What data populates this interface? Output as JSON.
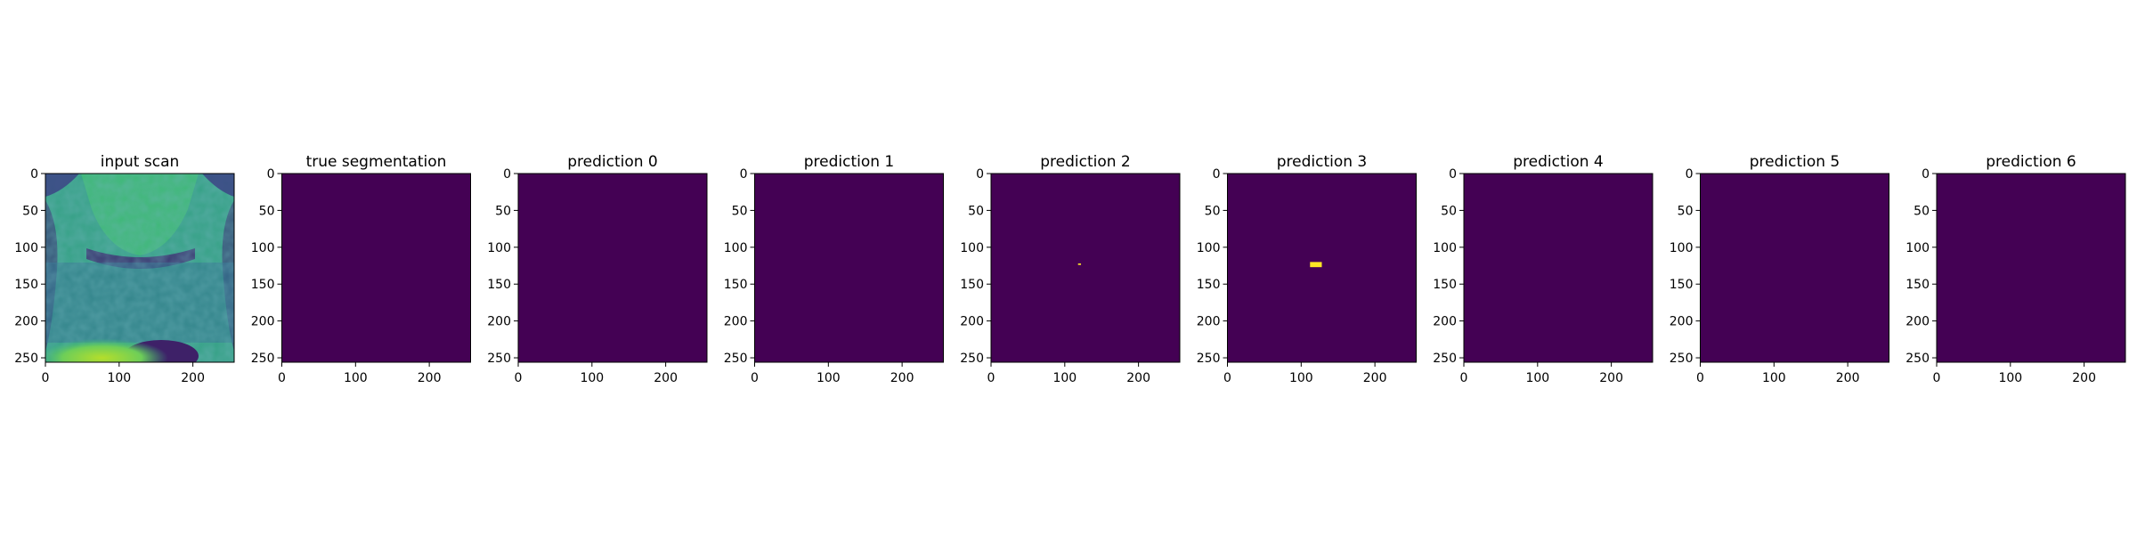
{
  "chart_data": [
    {
      "type": "heatmap",
      "title": "input scan",
      "xlim": [
        0,
        256
      ],
      "ylim": [
        256,
        0
      ],
      "x_ticks": [
        "0",
        "100",
        "200"
      ],
      "y_ticks": [
        "0",
        "50",
        "100",
        "150",
        "200",
        "250"
      ],
      "content": "MRI scan image (viridis colormap)",
      "colormap": "viridis"
    },
    {
      "type": "heatmap",
      "title": "true segmentation",
      "xlim": [
        0,
        256
      ],
      "ylim": [
        256,
        0
      ],
      "x_ticks": [
        "0",
        "100",
        "200"
      ],
      "y_ticks": [
        "0",
        "50",
        "100",
        "150",
        "200",
        "250"
      ],
      "background": "#440154",
      "regions": []
    },
    {
      "type": "heatmap",
      "title": "prediction 0",
      "xlim": [
        0,
        256
      ],
      "ylim": [
        256,
        0
      ],
      "x_ticks": [
        "0",
        "100",
        "200"
      ],
      "y_ticks": [
        "0",
        "50",
        "100",
        "150",
        "200",
        "250"
      ],
      "background": "#440154",
      "regions": []
    },
    {
      "type": "heatmap",
      "title": "prediction 1",
      "xlim": [
        0,
        256
      ],
      "ylim": [
        256,
        0
      ],
      "x_ticks": [
        "0",
        "100",
        "200"
      ],
      "y_ticks": [
        "0",
        "50",
        "100",
        "150",
        "200",
        "250"
      ],
      "background": "#440154",
      "regions": []
    },
    {
      "type": "heatmap",
      "title": "prediction 2",
      "xlim": [
        0,
        256
      ],
      "ylim": [
        256,
        0
      ],
      "x_ticks": [
        "0",
        "100",
        "200"
      ],
      "y_ticks": [
        "0",
        "50",
        "100",
        "150",
        "200",
        "250"
      ],
      "background": "#440154",
      "regions": [
        {
          "x": [
            118,
            122
          ],
          "y": [
            122,
            124
          ],
          "color": "#fde725"
        }
      ]
    },
    {
      "type": "heatmap",
      "title": "prediction 3",
      "xlim": [
        0,
        256
      ],
      "ylim": [
        256,
        0
      ],
      "x_ticks": [
        "0",
        "100",
        "200"
      ],
      "y_ticks": [
        "0",
        "50",
        "100",
        "150",
        "200",
        "250"
      ],
      "background": "#440154",
      "regions": [
        {
          "x": [
            112,
            128
          ],
          "y": [
            120,
            127
          ],
          "color": "#fde725"
        }
      ]
    },
    {
      "type": "heatmap",
      "title": "prediction 4",
      "xlim": [
        0,
        256
      ],
      "ylim": [
        256,
        0
      ],
      "x_ticks": [
        "0",
        "100",
        "200"
      ],
      "y_ticks": [
        "0",
        "50",
        "100",
        "150",
        "200",
        "250"
      ],
      "background": "#440154",
      "regions": []
    },
    {
      "type": "heatmap",
      "title": "prediction 5",
      "xlim": [
        0,
        256
      ],
      "ylim": [
        256,
        0
      ],
      "x_ticks": [
        "0",
        "100",
        "200"
      ],
      "y_ticks": [
        "0",
        "50",
        "100",
        "150",
        "200",
        "250"
      ],
      "background": "#440154",
      "regions": []
    },
    {
      "type": "heatmap",
      "title": "prediction 6",
      "xlim": [
        0,
        256
      ],
      "ylim": [
        256,
        0
      ],
      "x_ticks": [
        "0",
        "100",
        "200"
      ],
      "y_ticks": [
        "0",
        "50",
        "100",
        "150",
        "200",
        "250"
      ],
      "background": "#440154",
      "regions": []
    }
  ]
}
